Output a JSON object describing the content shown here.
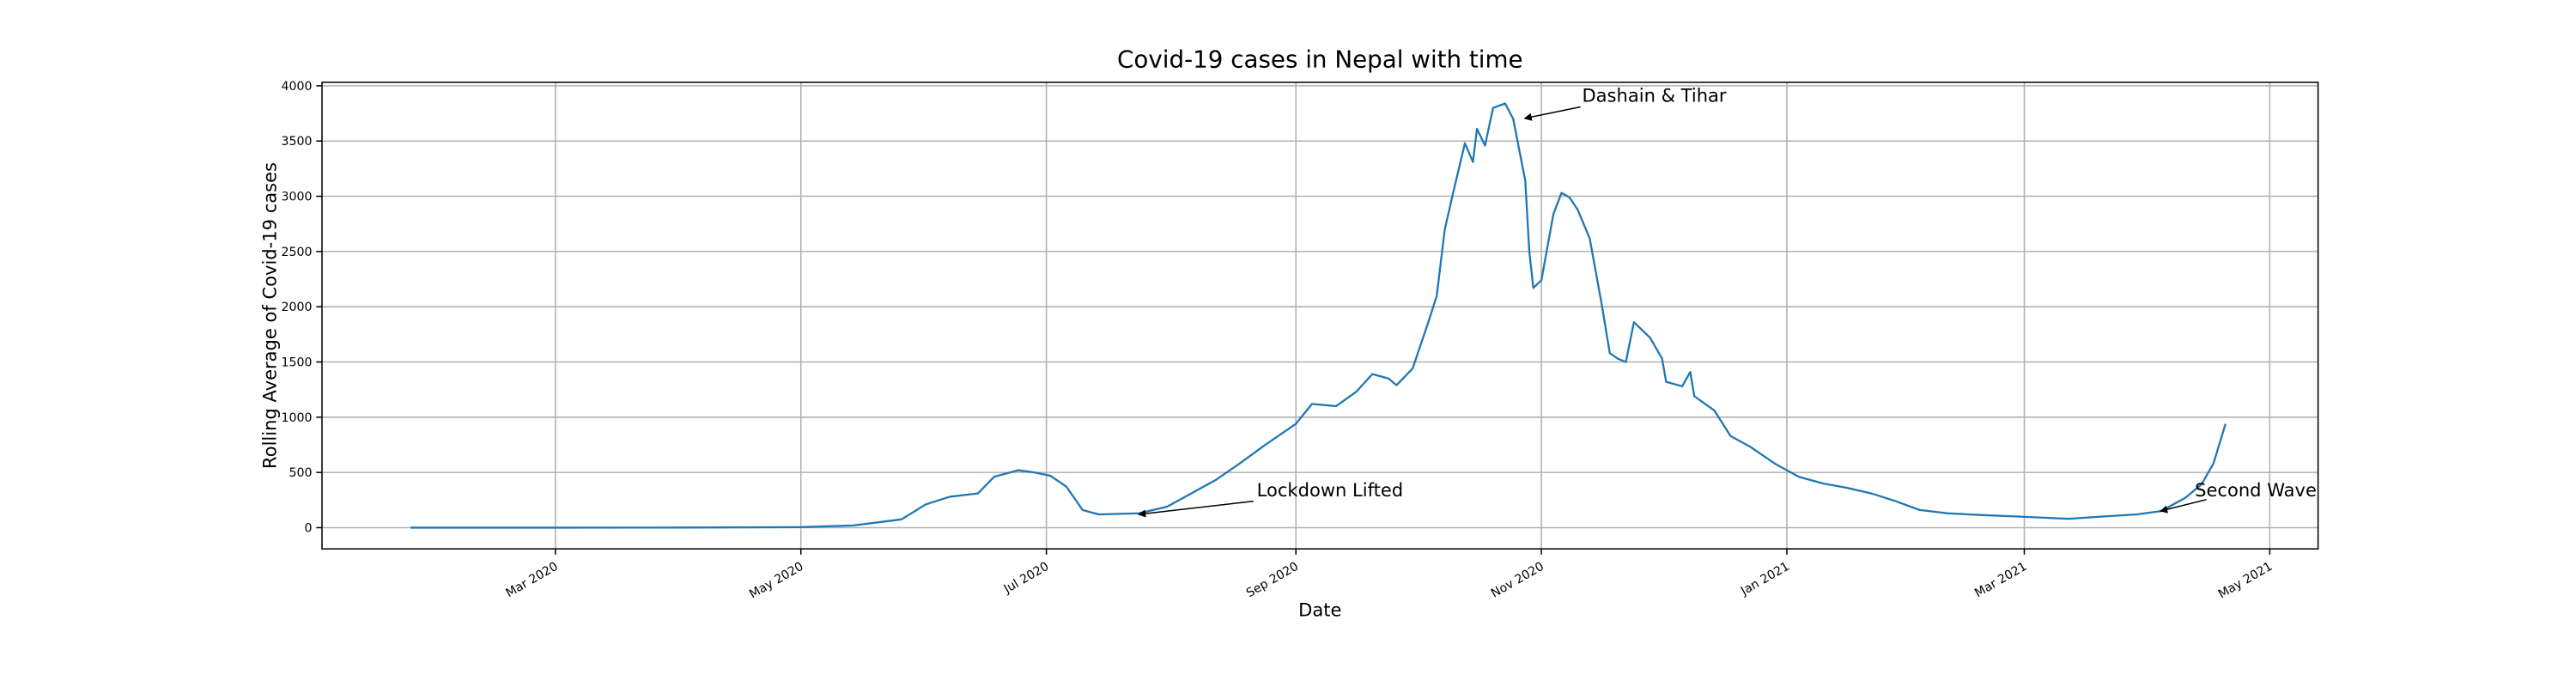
{
  "chart_data": {
    "type": "line",
    "title": "Covid-19 cases in Nepal with time",
    "x_label": "Date",
    "y_label": "Rolling Average of Covid-19 cases",
    "color": "#1f77b4",
    "grid": true,
    "xlim": [
      "2020-01-03",
      "2021-05-13"
    ],
    "xticks": [
      {
        "value": "2020-03-01",
        "label": "Mar 2020"
      },
      {
        "value": "2020-05-01",
        "label": "May 2020"
      },
      {
        "value": "2020-07-01",
        "label": "Jul 2020"
      },
      {
        "value": "2020-09-01",
        "label": "Sep 2020"
      },
      {
        "value": "2020-11-01",
        "label": "Nov 2020"
      },
      {
        "value": "2021-01-01",
        "label": "Jan 2021"
      },
      {
        "value": "2021-03-01",
        "label": "Mar 2021"
      },
      {
        "value": "2021-05-01",
        "label": "May 2021"
      }
    ],
    "ylim": [
      -192,
      4032
    ],
    "yticks": [
      0,
      500,
      1000,
      1500,
      2000,
      2500,
      3000,
      3500,
      4000
    ],
    "x": [
      "2020-01-25",
      "2020-03-01",
      "2020-04-03",
      "2020-05-01",
      "2020-05-14",
      "2020-05-26",
      "2020-06-01",
      "2020-06-07",
      "2020-06-14",
      "2020-06-18",
      "2020-06-24",
      "2020-06-28",
      "2020-07-02",
      "2020-07-06",
      "2020-07-10",
      "2020-07-14",
      "2020-07-24",
      "2020-07-31",
      "2020-08-06",
      "2020-08-12",
      "2020-08-18",
      "2020-08-24",
      "2020-09-01",
      "2020-09-05",
      "2020-09-11",
      "2020-09-16",
      "2020-09-20",
      "2020-09-24",
      "2020-09-26",
      "2020-09-30",
      "2020-10-04",
      "2020-10-06",
      "2020-10-08",
      "2020-10-10",
      "2020-10-13",
      "2020-10-15",
      "2020-10-16",
      "2020-10-18",
      "2020-10-20",
      "2020-10-23",
      "2020-10-25",
      "2020-10-28",
      "2020-10-29",
      "2020-10-30",
      "2020-11-01",
      "2020-11-04",
      "2020-11-06",
      "2020-11-08",
      "2020-11-10",
      "2020-11-13",
      "2020-11-16",
      "2020-11-18",
      "2020-11-20",
      "2020-11-22",
      "2020-11-24",
      "2020-11-28",
      "2020-12-01",
      "2020-12-02",
      "2020-12-06",
      "2020-12-08",
      "2020-12-09",
      "2020-12-14",
      "2020-12-18",
      "2020-12-23",
      "2020-12-29",
      "2021-01-04",
      "2021-01-10",
      "2021-01-16",
      "2021-01-22",
      "2021-01-28",
      "2021-02-03",
      "2021-02-10",
      "2021-02-18",
      "2021-02-28",
      "2021-03-12",
      "2021-03-20",
      "2021-03-29",
      "2021-04-04",
      "2021-04-10",
      "2021-04-14",
      "2021-04-17",
      "2021-04-20"
    ],
    "values": [
      0,
      0,
      1,
      5,
      20,
      75,
      210,
      280,
      310,
      460,
      520,
      500,
      470,
      370,
      160,
      120,
      130,
      190,
      310,
      430,
      580,
      740,
      940,
      1120,
      1100,
      1230,
      1390,
      1350,
      1290,
      1440,
      1870,
      2100,
      2700,
      3020,
      3480,
      3310,
      3610,
      3460,
      3800,
      3840,
      3700,
      3140,
      2500,
      2170,
      2240,
      2840,
      3030,
      2990,
      2880,
      2620,
      2020,
      1580,
      1530,
      1500,
      1860,
      1720,
      1530,
      1320,
      1280,
      1410,
      1190,
      1060,
      830,
      730,
      580,
      460,
      400,
      360,
      310,
      240,
      160,
      130,
      115,
      100,
      80,
      100,
      120,
      150,
      270,
      390,
      580,
      940
    ],
    "annotations": [
      {
        "text": "Dashain & Tihar",
        "color": "red"
      },
      {
        "text": "Lockdown Lifted",
        "color": "red"
      },
      {
        "text": "Second Wave",
        "color": "red"
      }
    ]
  }
}
